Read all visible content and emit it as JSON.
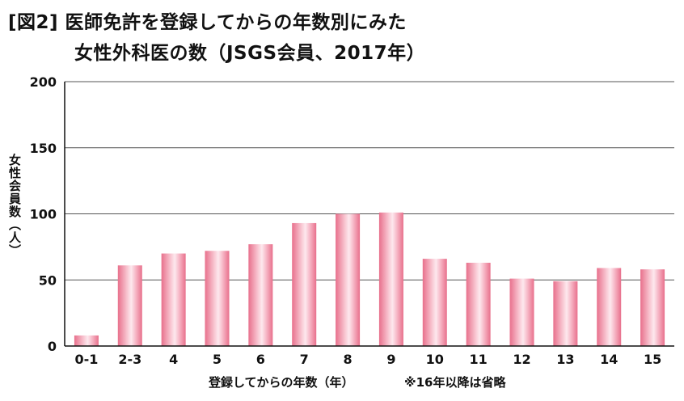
{
  "figure": {
    "title_line1": "[図2] 医師免許を登録してからの年数別にみた",
    "title_line2": "女性外科医の数（JSGS会員、2017年）",
    "note": "※16年以降は省略"
  },
  "colors": {
    "bar_edge": "#e8708c",
    "bar_mid": "#f9c9d4",
    "bar_light": "#fde8ee",
    "grid": "#555555",
    "axis": "#111111"
  },
  "chart_data": {
    "type": "bar",
    "title": "[図2] 医師免許を登録してからの年数別にみた 女性外科医の数（JSGS会員、2017年）",
    "xlabel": "登録してからの年数（年）",
    "ylabel": "女性会員数（人）",
    "categories": [
      "0-1",
      "2-3",
      "4",
      "5",
      "6",
      "7",
      "8",
      "9",
      "10",
      "11",
      "12",
      "13",
      "14",
      "15"
    ],
    "values": [
      8,
      61,
      70,
      72,
      77,
      93,
      100,
      101,
      66,
      63,
      51,
      49,
      59,
      58
    ],
    "ylim": [
      0,
      200
    ],
    "yticks": [
      0,
      50,
      100,
      150,
      200
    ],
    "grid": true,
    "legend": "none"
  }
}
